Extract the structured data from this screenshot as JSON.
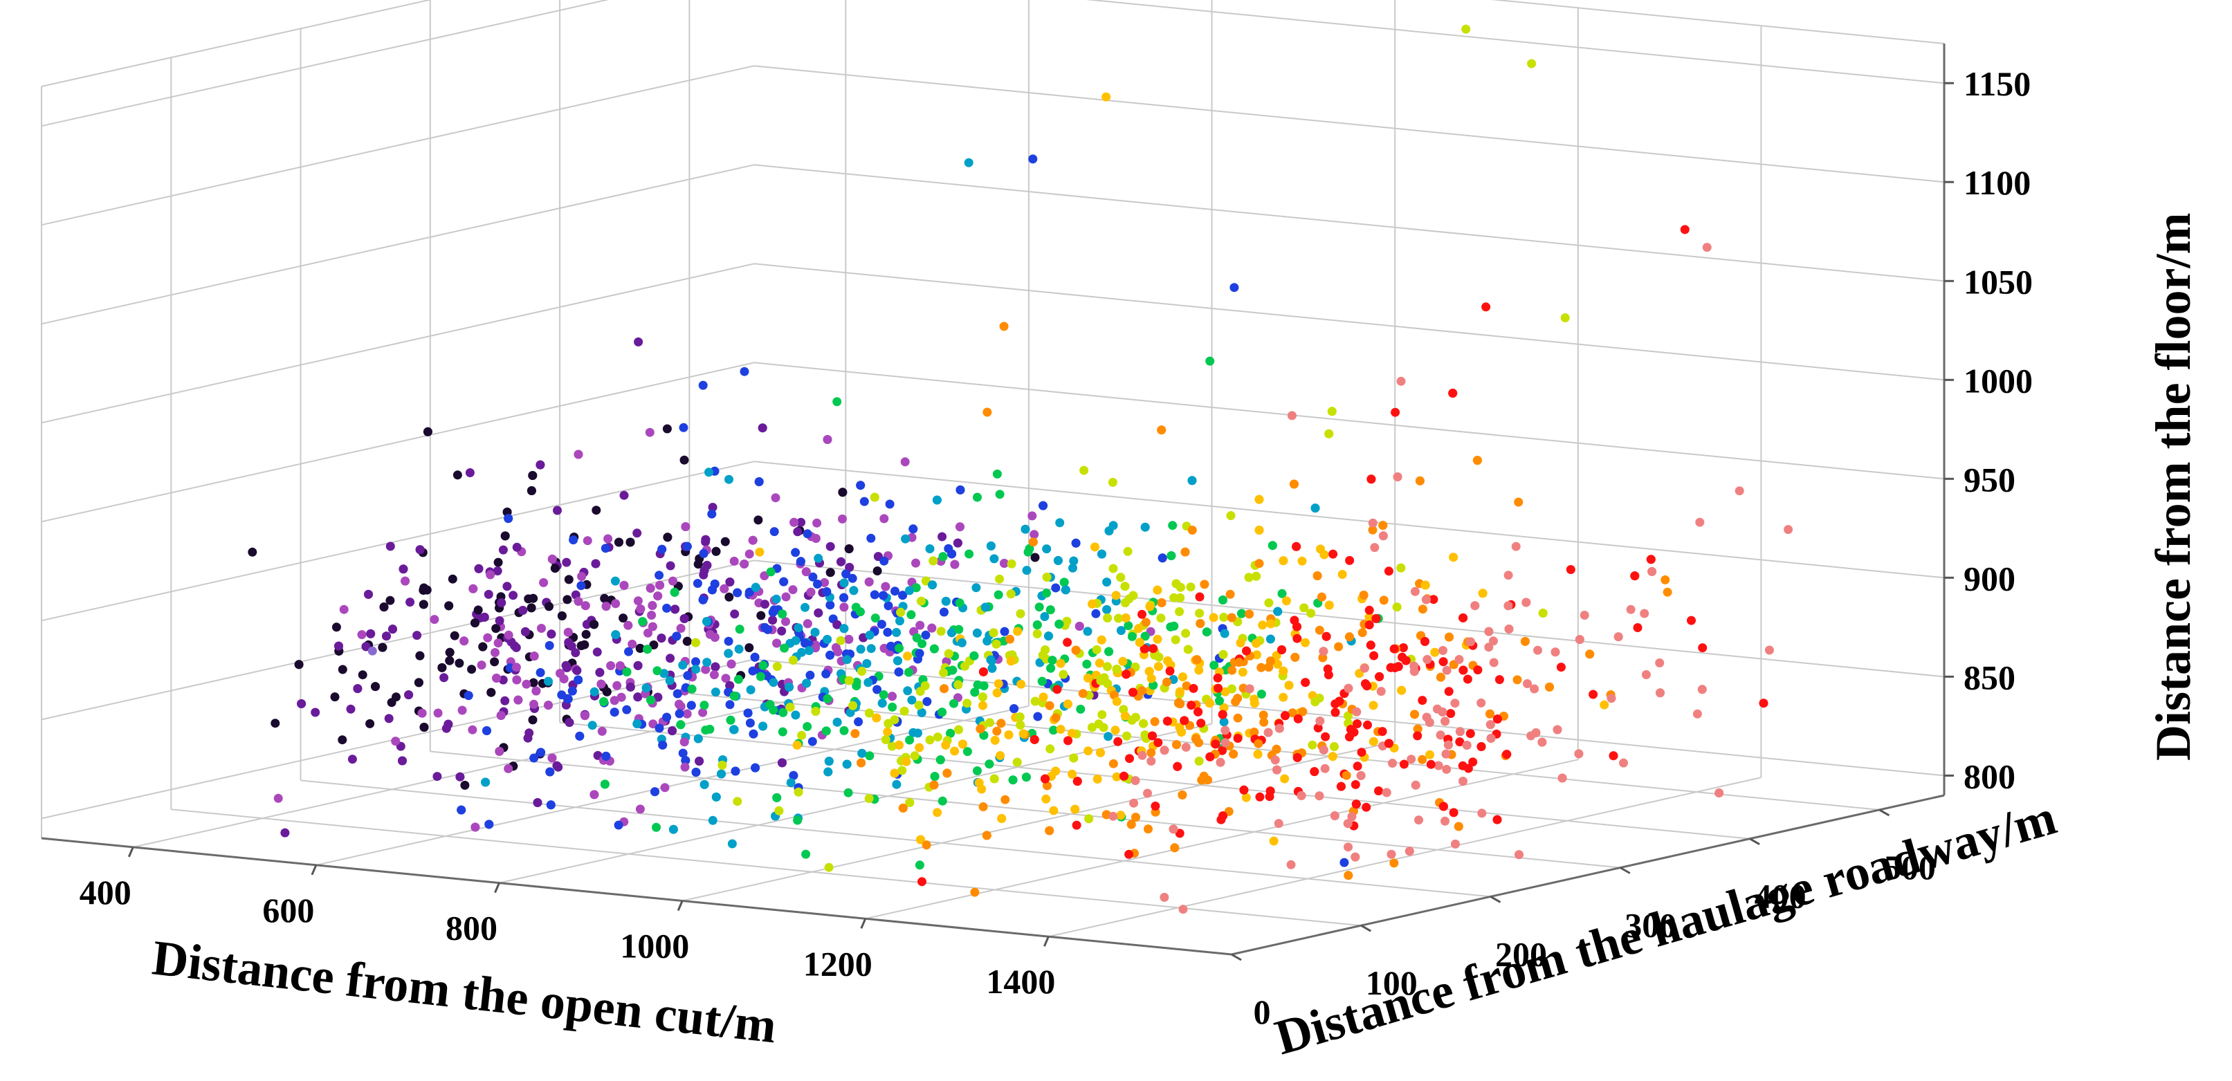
{
  "chart_data": {
    "type": "scatter",
    "projection": "3d",
    "title": "",
    "xlabel": "Distance from the open cut/m",
    "ylabel": "Distance from the haulage roadway/m",
    "zlabel": "Distance from the floor/m",
    "xlim": [
      300,
      1600
    ],
    "ylim": [
      0,
      550
    ],
    "zlim": [
      790,
      1170
    ],
    "x_ticks": [
      400,
      600,
      800,
      1000,
      1200,
      1400
    ],
    "y_ticks": [
      0,
      100,
      200,
      300,
      400,
      500
    ],
    "z_ticks": [
      800,
      850,
      900,
      950,
      1000,
      1050,
      1100,
      1150
    ],
    "grid": true,
    "legend": "none",
    "colormap": [
      "#1a0a2e",
      "#6a1b9a",
      "#ab47bc",
      "#1e40e0",
      "#00a0c8",
      "#00c850",
      "#c8e000",
      "#ffc000",
      "#ff8c00",
      "#ff1010",
      "#f08080"
    ],
    "point_count": 2400,
    "cluster_center": {
      "x": 1080,
      "y": 230,
      "z": 870
    },
    "outliers": [
      {
        "x": 1010,
        "y": 320,
        "z": 1150,
        "color": "#ffc000"
      },
      {
        "x": 1120,
        "y": 520,
        "z": 1160,
        "color": "#c8e000"
      },
      {
        "x": 1220,
        "y": 500,
        "z": 1150,
        "color": "#c8e000"
      },
      {
        "x": 860,
        "y": 320,
        "z": 1110,
        "color": "#00a0c8"
      },
      {
        "x": 930,
        "y": 320,
        "z": 1115,
        "color": "#1e40e0"
      },
      {
        "x": 1430,
        "y": 470,
        "z": 1080,
        "color": "#ff1010"
      },
      {
        "x": 1440,
        "y": 480,
        "z": 1070,
        "color": "#f08080"
      },
      {
        "x": 1340,
        "y": 380,
        "z": 1050,
        "color": "#ff1010"
      },
      {
        "x": 1040,
        "y": 220,
        "z": 1050,
        "color": "#ff8c00"
      },
      {
        "x": 1150,
        "y": 320,
        "z": 1060,
        "color": "#1e40e0"
      },
      {
        "x": 1180,
        "y": 280,
        "z": 1030,
        "color": "#00c850"
      },
      {
        "x": 900,
        "y": 190,
        "z": 1010,
        "color": "#00c850"
      },
      {
        "x": 1050,
        "y": 200,
        "z": 1010,
        "color": "#ff8c00"
      },
      {
        "x": 1370,
        "y": 420,
        "z": 1040,
        "color": "#c8e000"
      },
      {
        "x": 520,
        "y": 100,
        "z": 880,
        "color": "#8a6ad0"
      },
      {
        "x": 560,
        "y": 90,
        "z": 860,
        "color": "#1a0a2e"
      },
      {
        "x": 1470,
        "y": 400,
        "z": 900,
        "color": "#f08080"
      },
      {
        "x": 1520,
        "y": 420,
        "z": 880,
        "color": "#ff1010"
      },
      {
        "x": 1440,
        "y": 200,
        "z": 800,
        "color": "#1e40e0"
      }
    ]
  }
}
